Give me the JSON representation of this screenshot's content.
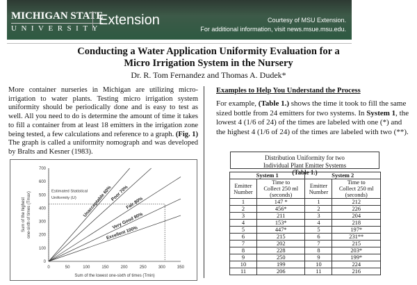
{
  "header": {
    "logo_line1": "MICHIGAN STATE",
    "logo_line2": "UNIVERSITY",
    "extension": "Extension",
    "courtesy": "Courtesy of MSU Extension.",
    "info": "For additional information, visit news.msue.msu.edu.",
    "bg_color": "#2e5a42"
  },
  "title_line1": "Conducting a Water Application Uniformity Evaluation for a",
  "title_line2": "Micro Irrigation System in the Nursery",
  "authors": "Dr. R. Tom Fernandez and Thomas A. Dudek*",
  "left": {
    "p1": "More container nurseries in Michigan are utilizing micro-irrigation to water plants. Testing micro irrigation system uniformity should be periodically done and is easy to test as well. All you need to do is determine the amount of time it takes to fill a container from at least 18 emitters in the irrigation zone being tested, a few calculations and reference to a graph. ",
    "fig_ref": "(Fig. 1)",
    "p2": " The graph is called a uniformity nomograph and was developed by Bralts and Kesner (1983)."
  },
  "right": {
    "heading": "Examples to Help You Understand the Process",
    "t1": "For example, ",
    "tref": "(Table 1.)",
    "t2": " shows the time it took to fill the same sized bottle from 24 emitters for two systems. In ",
    "sys": "System 1",
    "t3": ", the lowest 4 (1/6 of 24) of the times are labeled with one (*) and the highest 4 (1/6 of 24) of the times are labeled with two (**)."
  },
  "table": {
    "caption1": "Distribution Uniformity for two",
    "caption2": "Individual Plant Emitter Systems",
    "caption3": "(Table 1.)",
    "sys1": "System 1",
    "sys2": "System 2",
    "h_emitter1": "Emitter",
    "h_emitter2": "Number",
    "h_time1": "Time to",
    "h_time2": "Collect 250 ml",
    "h_time3": "(seconds)",
    "rows": [
      [
        "1",
        "147 *",
        "1",
        "212"
      ],
      [
        "2",
        "456*",
        "2",
        "226"
      ],
      [
        "3",
        "211",
        "3",
        "204"
      ],
      [
        "4",
        "153*",
        "4",
        "218"
      ],
      [
        "5",
        "447*",
        "5",
        "197*"
      ],
      [
        "6",
        "215",
        "6",
        "231**"
      ],
      [
        "7",
        "202",
        "7",
        "215"
      ],
      [
        "8",
        "228",
        "8",
        "203*"
      ],
      [
        "9",
        "250",
        "9",
        "199*"
      ],
      [
        "10",
        "199",
        "10",
        "224"
      ],
      [
        "11",
        "206",
        "11",
        "216"
      ]
    ]
  },
  "chart_data": {
    "type": "line",
    "xlabel": "Sum of the lowest one-sixth of times (Tmin)",
    "ylabel1": "Sum of the highest",
    "ylabel2": "one-sixth of times (Tmax)",
    "xlim": [
      0,
      350
    ],
    "ylim": [
      0,
      700
    ],
    "xticks": [
      "0",
      "50",
      "100",
      "150",
      "200",
      "250",
      "300",
      "350"
    ],
    "yticks": [
      "0",
      "100",
      "200",
      "300",
      "400",
      "500",
      "600",
      "700"
    ],
    "annotation1": "Estimated Statistical",
    "annotation2": "Uniformity (U)",
    "series": [
      {
        "name": "Unacceptable 60%",
        "x": [
          0,
          215
        ],
        "y": [
          0,
          700
        ]
      },
      {
        "name": "Poor 70%",
        "x": [
          0,
          272
        ],
        "y": [
          0,
          700
        ]
      },
      {
        "name": "Fair 80%",
        "x": [
          0,
          350
        ],
        "y": [
          0,
          635
        ]
      },
      {
        "name": "Very Good 90%",
        "x": [
          0,
          350
        ],
        "y": [
          0,
          470
        ]
      },
      {
        "name": "Excellent 100%",
        "x": [
          0,
          350
        ],
        "y": [
          0,
          345
        ]
      }
    ],
    "reference": {
      "x": 308,
      "y": 430
    }
  }
}
